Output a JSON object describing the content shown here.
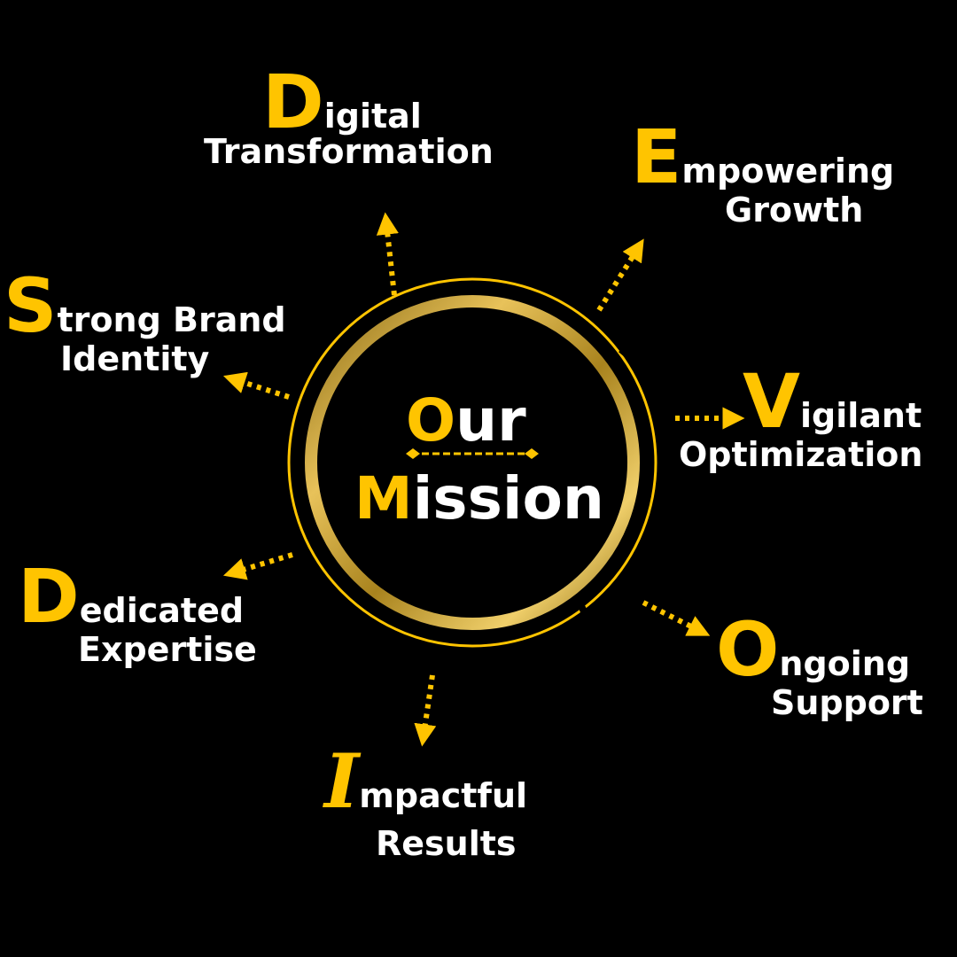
{
  "center": {
    "line1_initial": "O",
    "line1_rest": "ur",
    "line2_initial": "M",
    "line2_rest": "ission"
  },
  "items": {
    "d1": {
      "initial": "D",
      "rest": "igital",
      "line2": "Transformation"
    },
    "e": {
      "initial": "E",
      "rest": "mpowering",
      "line2": "Growth"
    },
    "s": {
      "initial": "S",
      "rest": "trong Brand",
      "line2": "Identity"
    },
    "v": {
      "initial": "V",
      "rest": "igilant",
      "line2": "Optimization"
    },
    "d2": {
      "initial": "D",
      "rest": "edicated",
      "line2": "Expertise"
    },
    "o": {
      "initial": "O",
      "rest": "ngoing",
      "line2": "Support"
    },
    "i": {
      "initial": "I",
      "rest": "mpactful",
      "line2": "Results"
    }
  },
  "colors": {
    "accent": "#ffc400",
    "ring_gold": "#c9a227",
    "background": "#000000",
    "text": "#ffffff"
  },
  "icons": [
    "dotted-arrow-icon",
    "gold-ring-icon",
    "double-arrow-divider-icon"
  ]
}
